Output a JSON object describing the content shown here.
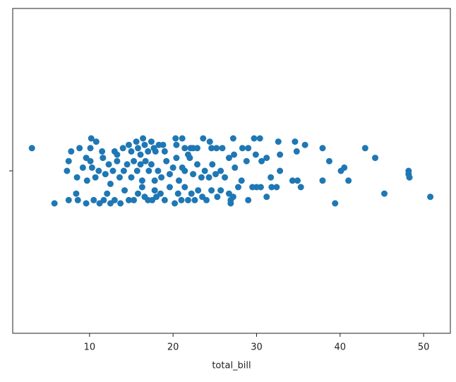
{
  "chart_data": {
    "type": "scatter",
    "xlabel": "total_bill",
    "color": "#1f77b4",
    "categories": [
      null
    ],
    "xlim": [
      0.8,
      53.2
    ],
    "xticks": [
      10,
      20,
      30,
      40,
      50
    ],
    "ylim": [
      0.5,
      -0.5
    ],
    "yticks": [
      0
    ],
    "x": [
      3.1,
      7.8,
      8.8,
      10.2,
      10.8,
      10.1,
      11.5,
      13.0,
      13.3,
      14.0,
      14.7,
      15.0,
      15.6,
      15.8,
      16.1,
      16.4,
      16.6,
      17.0,
      17.4,
      17.7,
      17.9,
      18.3,
      18.8,
      19.0,
      20.3,
      20.4,
      21.1,
      21.4,
      21.8,
      22.1,
      22.4,
      22.9,
      23.6,
      24.4,
      24.6,
      25.2,
      25.9,
      27.2,
      27.3,
      28.3,
      29.0,
      29.7,
      29.9,
      30.4,
      31.2,
      32.6,
      32.8,
      34.6,
      34.8,
      35.8,
      37.9,
      38.7,
      43.0,
      44.2,
      7.3,
      7.5,
      8.5,
      9.2,
      9.6,
      9.7,
      10.1,
      10.3,
      10.7,
      11.1,
      11.6,
      11.9,
      12.3,
      12.5,
      12.8,
      13.3,
      13.6,
      14.1,
      14.5,
      15.0,
      15.3,
      15.7,
      16.1,
      16.3,
      16.7,
      17.1,
      17.4,
      17.8,
      18.2,
      18.6,
      19.2,
      19.6,
      20.0,
      20.4,
      20.7,
      21.1,
      21.4,
      22.0,
      22.4,
      22.9,
      23.4,
      23.8,
      24.3,
      24.7,
      25.1,
      25.7,
      26.2,
      26.7,
      27.4,
      28.2,
      28.8,
      30.0,
      30.6,
      31.7,
      31.8,
      32.4,
      32.8,
      34.3,
      34.9,
      35.3,
      37.9,
      40.1,
      40.5,
      41.0,
      48.2,
      48.2,
      48.3,
      5.8,
      7.5,
      8.4,
      8.6,
      9.6,
      10.5,
      11.2,
      11.7,
      12.1,
      12.5,
      13.0,
      13.7,
      14.2,
      14.7,
      15.3,
      15.8,
      16.3,
      16.6,
      17.0,
      17.5,
      17.8,
      18.0,
      18.5,
      19.0,
      19.6,
      20.2,
      20.6,
      21.0,
      21.4,
      21.8,
      22.2,
      22.6,
      23.0,
      23.5,
      24.0,
      24.6,
      25.3,
      25.7,
      26.7,
      26.9,
      26.9,
      27.2,
      27.8,
      29.0,
      29.5,
      30.5,
      31.2,
      39.4,
      45.3,
      50.8
    ],
    "y": [
      -0.07,
      -0.06,
      -0.07,
      -0.1,
      -0.09,
      -0.07,
      -0.06,
      -0.06,
      -0.05,
      -0.07,
      -0.08,
      -0.06,
      -0.09,
      -0.07,
      -0.05,
      -0.1,
      -0.08,
      -0.06,
      -0.09,
      -0.07,
      -0.06,
      -0.08,
      -0.08,
      -0.06,
      -0.1,
      -0.08,
      -0.1,
      -0.07,
      -0.05,
      -0.07,
      -0.07,
      -0.07,
      -0.1,
      -0.09,
      -0.07,
      -0.07,
      -0.07,
      -0.1,
      -0.05,
      -0.07,
      -0.07,
      -0.1,
      -0.05,
      -0.1,
      -0.04,
      -0.09,
      -0.05,
      -0.09,
      -0.06,
      -0.08,
      -0.07,
      -0.03,
      -0.07,
      -0.04,
      0,
      -0.03,
      0.02,
      -0.01,
      -0.04,
      0.03,
      -0.03,
      -0.01,
      0.02,
      0,
      -0.04,
      0.01,
      -0.02,
      0.04,
      0,
      -0.03,
      0.02,
      0,
      -0.02,
      0.02,
      -0.03,
      0,
      -0.02,
      0.03,
      -0.03,
      0,
      -0.02,
      0.03,
      0,
      0.02,
      -0.03,
      0.01,
      -0.01,
      -0.04,
      0.03,
      -0.01,
      0,
      -0.04,
      0.01,
      -0.02,
      0.02,
      0,
      0.02,
      -0.02,
      0.01,
      0,
      0.02,
      -0.04,
      -0.01,
      0.03,
      -0.03,
      0.05,
      -0.03,
      0.02,
      0.05,
      0.05,
      0,
      0.03,
      0.03,
      0.05,
      0.03,
      0,
      -0.01,
      0.03,
      0,
      0.01,
      0.02,
      0.1,
      0.09,
      0.07,
      0.09,
      0.1,
      0.09,
      0.1,
      0.09,
      0.07,
      0.1,
      0.09,
      0.1,
      0.06,
      0.09,
      0.09,
      0.07,
      0.05,
      0.08,
      0.09,
      0.09,
      0.06,
      0.08,
      0.07,
      0.09,
      0.05,
      0.1,
      0.07,
      0.09,
      0.05,
      0.09,
      0.07,
      0.09,
      0.06,
      0.08,
      0.09,
      0.06,
      0.08,
      0.06,
      0.07,
      0.09,
      0.1,
      0.08,
      0.05,
      0.09,
      0.05,
      0.05,
      0.08,
      0.1,
      0.07,
      0.08
    ]
  }
}
